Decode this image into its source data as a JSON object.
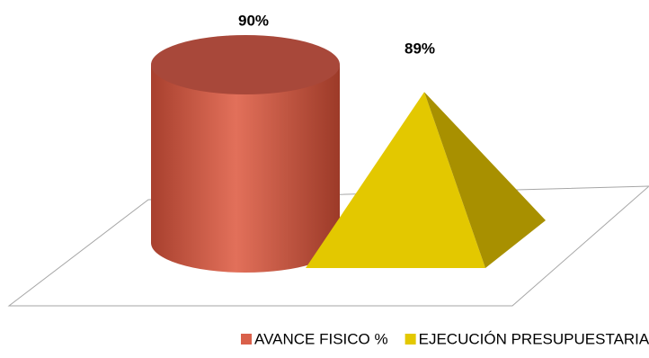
{
  "chart_data": {
    "type": "bar",
    "categories": [
      null
    ],
    "series": [
      {
        "name": "AVANCE FISICO %",
        "color": "#d9604a",
        "shape": "cylinder",
        "values": [
          90
        ],
        "value_labels": [
          "90%"
        ]
      },
      {
        "name": "EJECUCIÓN PRESUPUESTARIA %",
        "color": "#e3c800",
        "shape": "pyramid",
        "values": [
          89
        ],
        "value_labels": [
          "89%"
        ]
      }
    ],
    "legend": "bottom"
  }
}
